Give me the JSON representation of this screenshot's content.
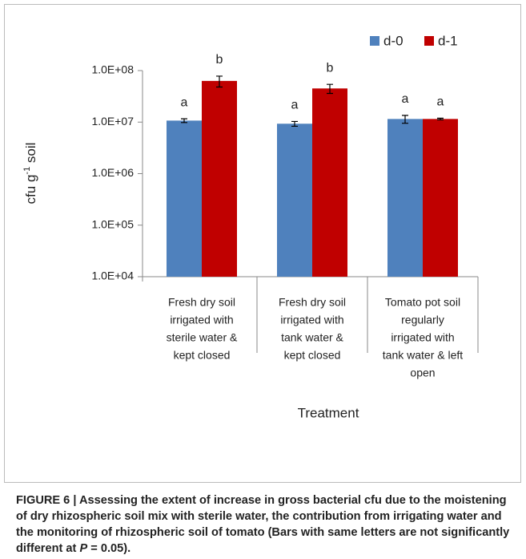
{
  "chart_data": {
    "type": "bar",
    "log_scale": true,
    "ylabel": {
      "text": "cfu g",
      "sup": "-1",
      "tail": " soil"
    },
    "xlabel": "Treatment",
    "categories": [
      [
        "Fresh dry soil",
        "irrigated with",
        "sterile water &",
        "kept closed"
      ],
      [
        "Fresh dry soil",
        "irrigated with",
        "tank water &",
        "kept closed"
      ],
      [
        "Tomato pot soil",
        "regularly",
        "irrigated with",
        "tank water & left",
        "open"
      ]
    ],
    "series": [
      {
        "name": "d-0",
        "color": "#4f81bd",
        "values": [
          10700000,
          9300000,
          11500000
        ],
        "errors": [
          900000,
          1000000,
          2000000
        ],
        "letters": [
          "a",
          "a",
          "a"
        ]
      },
      {
        "name": "d-1",
        "color": "#c00000",
        "values": [
          63000000,
          45000000,
          11500000
        ],
        "errors": [
          15000000,
          9000000,
          400000
        ],
        "letters": [
          "b",
          "b",
          "a"
        ]
      }
    ],
    "ylim": [
      10000,
      100000000
    ],
    "yticks": [
      {
        "value": 10000,
        "label": "1.0E+04"
      },
      {
        "value": 100000,
        "label": "1.0E+05"
      },
      {
        "value": 1000000,
        "label": "1.0E+06"
      },
      {
        "value": 10000000,
        "label": "1.0E+07"
      },
      {
        "value": 100000000,
        "label": "1.0E+08"
      }
    ],
    "legend": "top-right"
  },
  "caption": {
    "text": "FIGURE 6 | Assessing the extent of increase in gross bacterial cfu due to the moistening of dry rhizospheric soil mix with sterile water, the contribution from irrigating water and the monitoring of rhizospheric soil of tomato (Bars with same letters are not significantly different at ",
    "italic": "P",
    "tail": " = 0.05)."
  }
}
